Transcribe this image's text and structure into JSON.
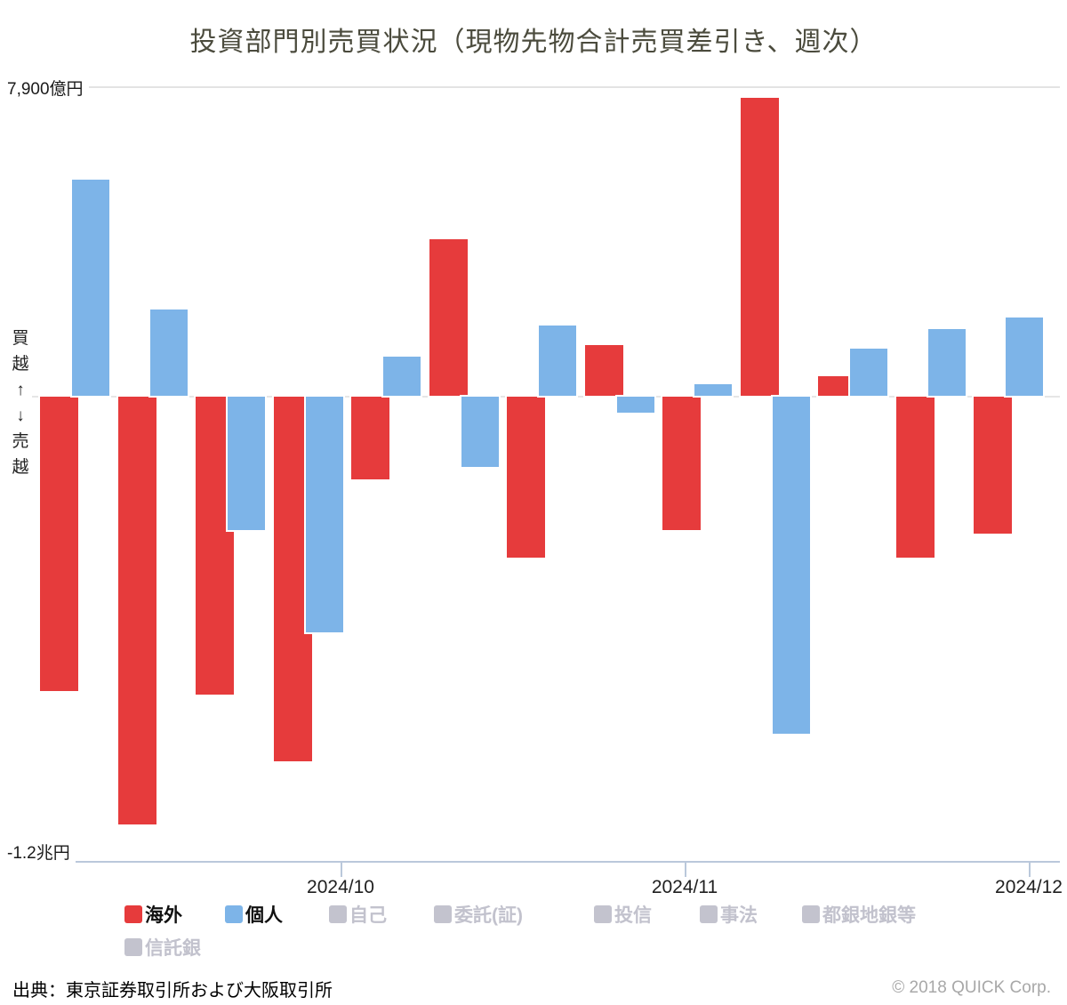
{
  "title": "投資部門別売買状況（現物先物合計売買差引き、週次）",
  "y_axis": {
    "max_label": "7,900億円",
    "min_label": "-1.2兆円",
    "direction_label": "買越↑↓売越"
  },
  "x_axis": {
    "tick_labels": [
      "2024/10",
      "2024/11",
      "2024/12"
    ]
  },
  "legend": {
    "items": [
      {
        "name": "overseas",
        "label": "海外",
        "color": "#e63b3c",
        "active": true
      },
      {
        "name": "individual",
        "label": "個人",
        "color": "#7db4e8",
        "active": true
      },
      {
        "name": "proprietary",
        "label": "自己",
        "color": "#c3c3ce",
        "active": false
      },
      {
        "name": "brokerage",
        "label": "委託(証)",
        "color": "#c3c3ce",
        "active": false
      },
      {
        "name": "investment-trust",
        "label": "投信",
        "color": "#c3c3ce",
        "active": false
      },
      {
        "name": "business-corp",
        "label": "事法",
        "color": "#c3c3ce",
        "active": false
      },
      {
        "name": "city-regional-banks",
        "label": "都銀地銀等",
        "color": "#c3c3ce",
        "active": false
      },
      {
        "name": "trust-banks",
        "label": "信託銀",
        "color": "#c3c3ce",
        "active": false
      }
    ],
    "active_text_color": "#111111",
    "inactive_text_color": "#c2c2cd"
  },
  "footer": {
    "source": "出典：東京証券取引所および大阪取引所",
    "copyright": "© 2018 QUICK Corp."
  },
  "chart_data": {
    "type": "bar",
    "unit": "億円",
    "title": "投資部門別売買状況（現物先物合計売買差引き、週次）",
    "n_weeks": 13,
    "categories": [
      1,
      2,
      3,
      4,
      5,
      6,
      7,
      8,
      9,
      10,
      11,
      12,
      13
    ],
    "series": [
      {
        "name": "海外",
        "color": "#e63b3c",
        "values": [
          -7500,
          -10900,
          -7600,
          -9300,
          -2100,
          4000,
          -4100,
          1300,
          -3400,
          7600,
          500,
          -4100,
          -3500
        ]
      },
      {
        "name": "個人",
        "color": "#7db4e8",
        "values": [
          5500,
          2200,
          -3400,
          -6000,
          1000,
          -1800,
          1800,
          -400,
          300,
          -8600,
          1200,
          1700,
          2000
        ]
      }
    ],
    "x_tick_labels": [
      "2024/10",
      "2024/11",
      "2024/12"
    ],
    "ylim": [
      -11850,
      7900
    ],
    "y_max_label": "7,900億円",
    "y_min_label": "-1.2兆円",
    "grid": "min-zero-max lines only",
    "legend_position": "bottom"
  }
}
